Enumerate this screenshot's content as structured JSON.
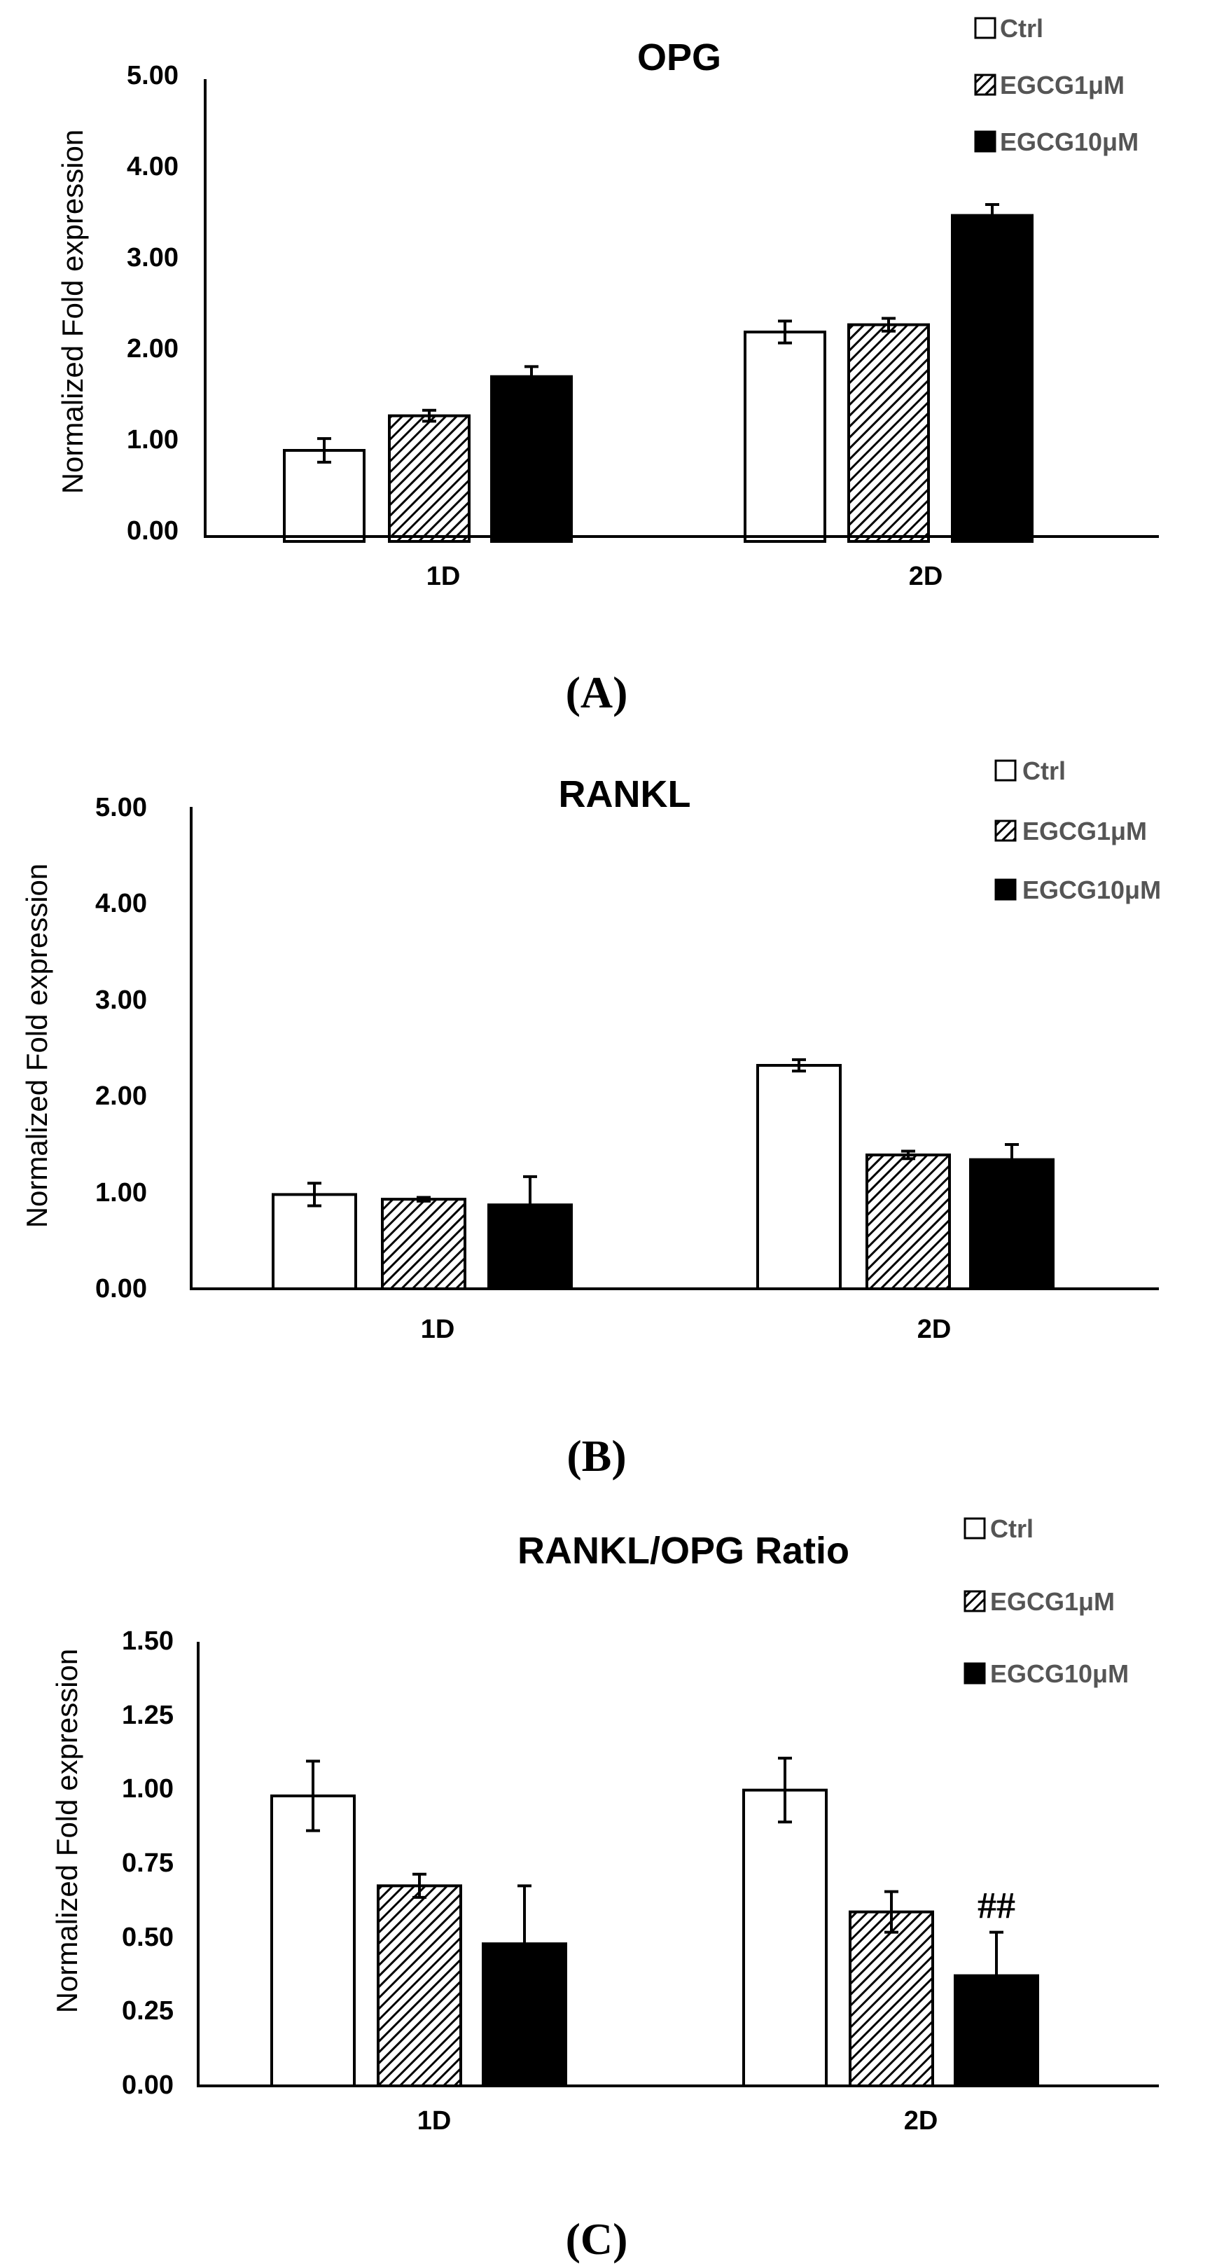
{
  "chart_data": [
    {
      "type": "bar",
      "title": "OPG",
      "panel_label": "(A)",
      "ylabel": "Normalized Fold expression",
      "xlabel": "",
      "ylim": [
        0,
        5
      ],
      "yticks": [
        "0.00",
        "1.00",
        "2.00",
        "3.00",
        "4.00",
        "5.00"
      ],
      "yticks_values": [
        0,
        1,
        2,
        3,
        4,
        5
      ],
      "categories": [
        "1D",
        "2D"
      ],
      "series": [
        {
          "name": "Ctrl",
          "pattern": "open",
          "values": [
            1.0,
            2.3
          ],
          "errors": [
            0.13,
            0.12
          ]
        },
        {
          "name": "EGCG1μM",
          "pattern": "hatch",
          "values": [
            1.38,
            2.38
          ],
          "errors": [
            0.06,
            0.07
          ]
        },
        {
          "name": "EGCG10μM",
          "pattern": "solid",
          "values": [
            1.81,
            3.58
          ],
          "errors": [
            0.11,
            0.12
          ]
        }
      ],
      "annotations": [],
      "legend_position": "top-right",
      "grid": false
    },
    {
      "type": "bar",
      "title": "RANKL",
      "panel_label": "(B)",
      "ylabel": "Normalized Fold expression",
      "xlabel": "",
      "ylim": [
        0,
        5
      ],
      "yticks": [
        "0.00",
        "1.00",
        "2.00",
        "3.00",
        "4.00",
        "5.00"
      ],
      "yticks_values": [
        0,
        1,
        2,
        3,
        4,
        5
      ],
      "categories": [
        "1D",
        "2D"
      ],
      "series": [
        {
          "name": "Ctrl",
          "pattern": "open",
          "values": [
            1.0,
            2.37
          ],
          "errors": [
            0.12,
            0.06
          ]
        },
        {
          "name": "EGCG1μM",
          "pattern": "hatch",
          "values": [
            0.95,
            1.42
          ],
          "errors": [
            0.02,
            0.04
          ]
        },
        {
          "name": "EGCG10μM",
          "pattern": "solid",
          "values": [
            0.89,
            1.37
          ],
          "errors": [
            0.3,
            0.16
          ]
        }
      ],
      "annotations": [],
      "legend_position": "top-right",
      "grid": false
    },
    {
      "type": "bar",
      "title": "RANKL/OPG Ratio",
      "panel_label": "(C)",
      "ylabel": "Normalized Fold expression",
      "xlabel": "",
      "ylim": [
        0,
        1.5
      ],
      "yticks": [
        "0.00",
        "0.25",
        "0.50",
        "0.75",
        "1.00",
        "1.25",
        "1.50"
      ],
      "yticks_values": [
        0,
        0.25,
        0.5,
        0.75,
        1.0,
        1.25,
        1.5
      ],
      "categories": [
        "1D",
        "2D"
      ],
      "series": [
        {
          "name": "Ctrl",
          "pattern": "open",
          "values": [
            1.0,
            1.02
          ],
          "errors": [
            0.12,
            0.11
          ]
        },
        {
          "name": "EGCG1μM",
          "pattern": "hatch",
          "values": [
            0.69,
            0.6
          ],
          "errors": [
            0.04,
            0.07
          ]
        },
        {
          "name": "EGCG10μM",
          "pattern": "solid",
          "values": [
            0.49,
            0.38
          ],
          "errors": [
            0.2,
            0.15
          ]
        }
      ],
      "annotations": [
        {
          "text": "##",
          "category": "2D",
          "series": "EGCG10μM"
        }
      ],
      "legend_position": "top-right",
      "grid": false
    }
  ]
}
